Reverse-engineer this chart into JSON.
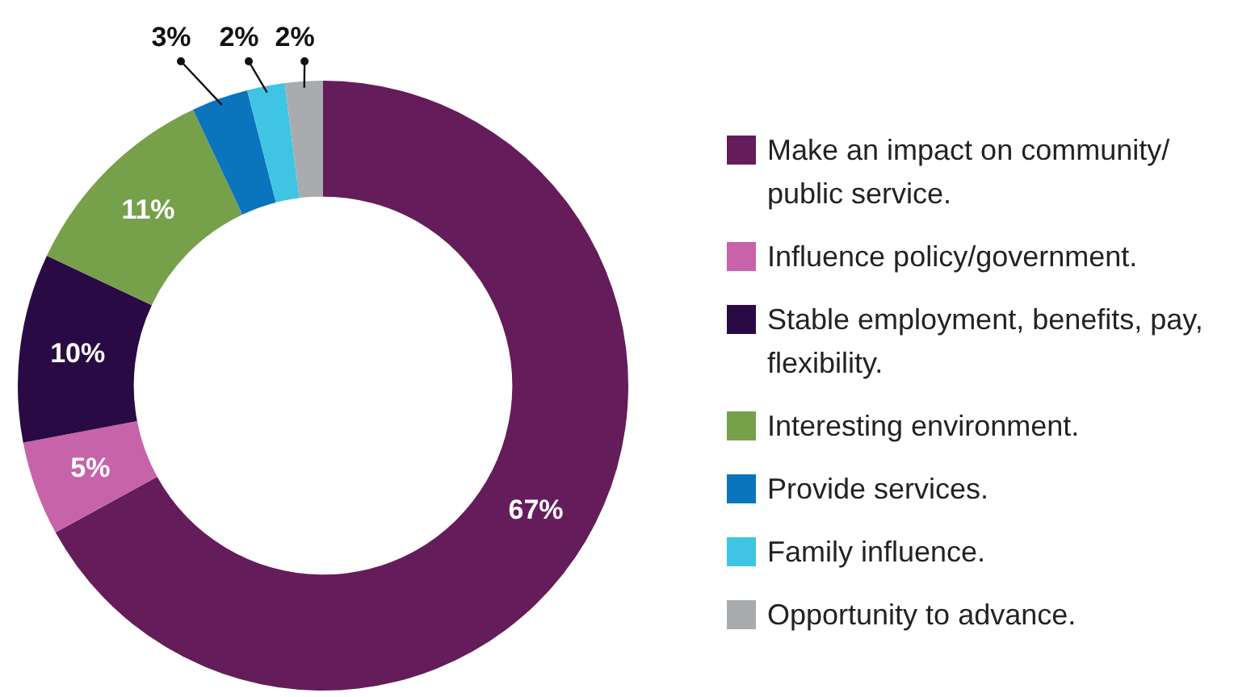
{
  "chart_data": {
    "type": "donut",
    "categories": [
      "Make an impact on community/ public service.",
      "Influence policy/government.",
      "Stable employment, benefits, pay, flexibility.",
      "Interesting environment.",
      "Provide services.",
      "Family influence.",
      "Opportunity to advance."
    ],
    "values": [
      67,
      5,
      10,
      11,
      3,
      2,
      2
    ],
    "colors": [
      "#651c5a",
      "#c763a8",
      "#2a0a45",
      "#76a04a",
      "#0a74bd",
      "#40c4e4",
      "#a9acaf"
    ],
    "value_labels": [
      "67%",
      "5%",
      "10%",
      "11%",
      "3%",
      "2%",
      "2%"
    ],
    "legend": "right"
  }
}
